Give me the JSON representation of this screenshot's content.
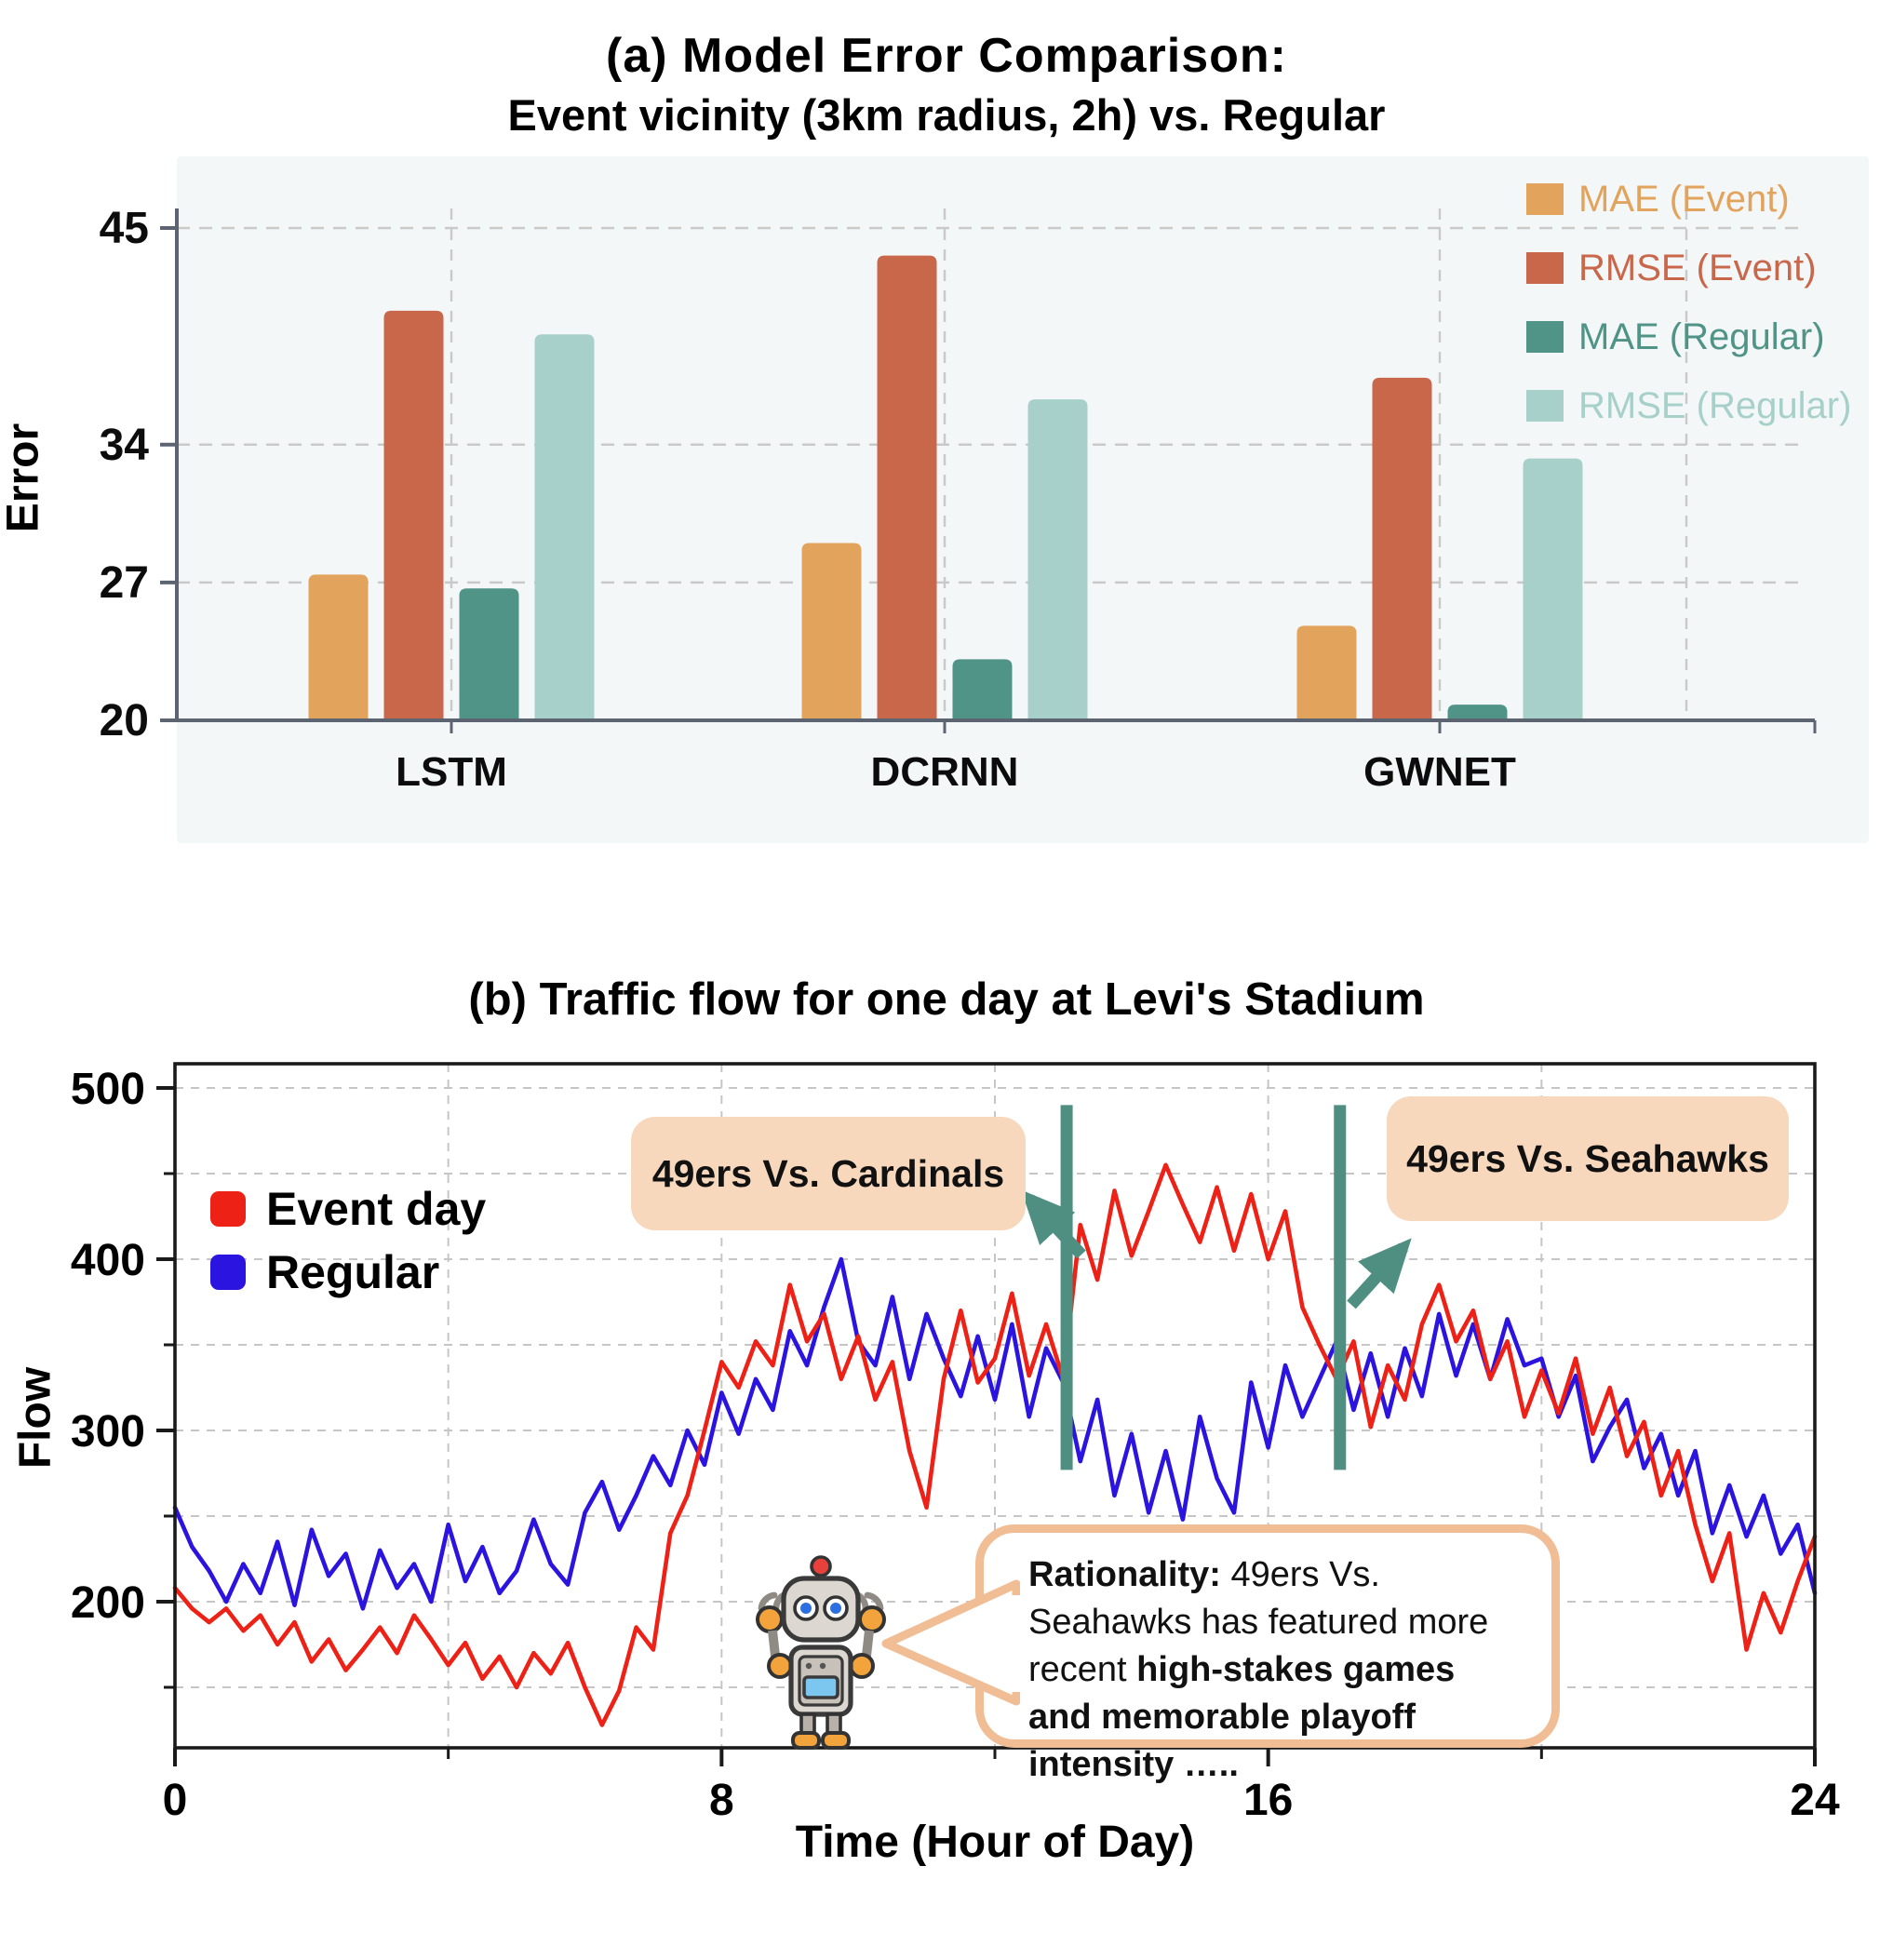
{
  "figure": {
    "title_a_line1": "(a) Model Error Comparison:",
    "title_a_line2": "Event vicinity (3km radius, 2h) vs. Regular",
    "title_b": "(b) Traffic flow for one day at Levi's Stadium"
  },
  "colors": {
    "panel": "#f4f7f8",
    "grid": "#c9c9c9",
    "axis_a": "#5c6472",
    "axis_b": "#1a1a1a",
    "event_marker": "#4e8f82",
    "annotation_box": "#f8d8bd",
    "bubble_border": "#f1bd95"
  },
  "chart_data": [
    {
      "type": "bar",
      "title": "(a) Model Error Comparison: Event vicinity (3km radius, 2h) vs. Regular",
      "ylabel": "Error",
      "categories": [
        "LSTM",
        "DCRNN",
        "GWNET"
      ],
      "yticks": [
        45,
        34,
        27,
        20
      ],
      "ylim": [
        20,
        46.8
      ],
      "grid": true,
      "legend_position": "upper right",
      "series": [
        {
          "name": "MAE (Event)",
          "color": "#e2a35c",
          "values": [
            27.4,
            29.0,
            24.8
          ]
        },
        {
          "name": "RMSE (Event)",
          "color": "#c9674b",
          "values": [
            40.8,
            43.6,
            37.4
          ]
        },
        {
          "name": "MAE (Regular)",
          "color": "#4f9487",
          "values": [
            26.7,
            23.1,
            20.8
          ]
        },
        {
          "name": "RMSE (Regular)",
          "color": "#a6d0c9",
          "values": [
            39.6,
            36.3,
            33.3
          ]
        }
      ]
    },
    {
      "type": "line",
      "title": "(b) Traffic flow for one day at Levi's Stadium",
      "xlabel": "Time (Hour of Day)",
      "ylabel": "Flow",
      "xticks": [
        0,
        8,
        16,
        24
      ],
      "xticks_minor": [
        4,
        12,
        20
      ],
      "yticks": [
        500,
        400,
        300,
        200
      ],
      "yticks_minor": [
        450,
        350,
        250,
        150
      ],
      "xlim": [
        0,
        24
      ],
      "ylim": [
        113,
        512
      ],
      "x_start": 0,
      "x_step": 0.25,
      "series": [
        {
          "name": "Event day",
          "color": "#ee2117",
          "values": [
            208,
            196,
            188,
            196,
            183,
            192,
            175,
            188,
            165,
            178,
            160,
            172,
            185,
            170,
            192,
            178,
            163,
            176,
            155,
            168,
            150,
            170,
            158,
            176,
            150,
            128,
            148,
            185,
            172,
            240,
            262,
            300,
            340,
            325,
            352,
            338,
            385,
            352,
            368,
            330,
            355,
            318,
            340,
            288,
            255,
            330,
            370,
            328,
            342,
            380,
            332,
            362,
            330,
            420,
            388,
            440,
            402,
            428,
            455,
            432,
            410,
            442,
            405,
            438,
            400,
            428,
            372,
            350,
            330,
            352,
            302,
            338,
            318,
            362,
            385,
            352,
            370,
            330,
            352,
            308,
            335,
            310,
            342,
            298,
            325,
            285,
            305,
            262,
            288,
            245,
            212,
            240,
            172,
            205,
            182,
            212,
            238
          ]
        },
        {
          "name": "Regular",
          "color": "#2b14e0",
          "values": [
            255,
            232,
            218,
            200,
            222,
            205,
            235,
            198,
            242,
            215,
            228,
            196,
            230,
            208,
            222,
            200,
            245,
            212,
            232,
            205,
            218,
            248,
            222,
            210,
            252,
            270,
            242,
            262,
            285,
            268,
            300,
            280,
            322,
            298,
            330,
            312,
            358,
            338,
            372,
            400,
            352,
            338,
            378,
            330,
            368,
            342,
            320,
            355,
            318,
            362,
            308,
            348,
            328,
            282,
            318,
            262,
            298,
            252,
            288,
            248,
            308,
            272,
            252,
            328,
            290,
            338,
            308,
            330,
            352,
            312,
            345,
            308,
            348,
            320,
            368,
            332,
            362,
            330,
            365,
            338,
            342,
            308,
            332,
            282,
            302,
            318,
            278,
            298,
            262,
            288,
            240,
            268,
            238,
            262,
            228,
            245,
            205
          ]
        }
      ],
      "event_lines": {
        "color": "#4e8f82",
        "hours": [
          13.05,
          17.05
        ],
        "flow_span": [
          277,
          490
        ]
      },
      "annotations": [
        {
          "label": "49ers Vs. Cardinals"
        },
        {
          "label": "49ers Vs. Seahawks"
        }
      ],
      "bubble": {
        "bold1": "Rationality:",
        "text1": " 49ers Vs. Seahawks has featured more recent ",
        "bold2": "high-stakes games and memorable playoff intensity ….."
      }
    }
  ]
}
